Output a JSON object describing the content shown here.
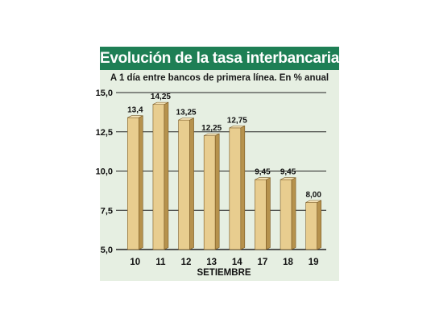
{
  "chart_data": {
    "type": "bar",
    "title": "Evolución de la tasa interbancaria",
    "subtitle": "A 1 día entre bancos de primera línea. En % anual",
    "xlabel": "SETIEMBRE",
    "ylabel": "",
    "categories": [
      "10",
      "11",
      "12",
      "13",
      "14",
      "17",
      "18",
      "19"
    ],
    "values": [
      13.4,
      14.25,
      13.25,
      12.25,
      12.75,
      9.45,
      9.45,
      8.0
    ],
    "value_labels": [
      "13,4",
      "14,25",
      "13,25",
      "12,25",
      "12,75",
      "9,45",
      "9,45",
      "8,00"
    ],
    "yticks": [
      5.0,
      7.5,
      10.0,
      12.5,
      15.0
    ],
    "ytick_labels": [
      "5,0",
      "7,5",
      "10,0",
      "12,5",
      "15,0"
    ],
    "ylim": [
      5.0,
      15.0
    ],
    "grid": true,
    "legend": "none"
  },
  "colors": {
    "header_bg": "#1e7f55",
    "panel_bg": "#e6efe2",
    "bar_front": "#e8cd8f",
    "bar_side": "#b6924d",
    "bar_top": "#f6e4b8",
    "bar_edge": "#7a5a24"
  }
}
